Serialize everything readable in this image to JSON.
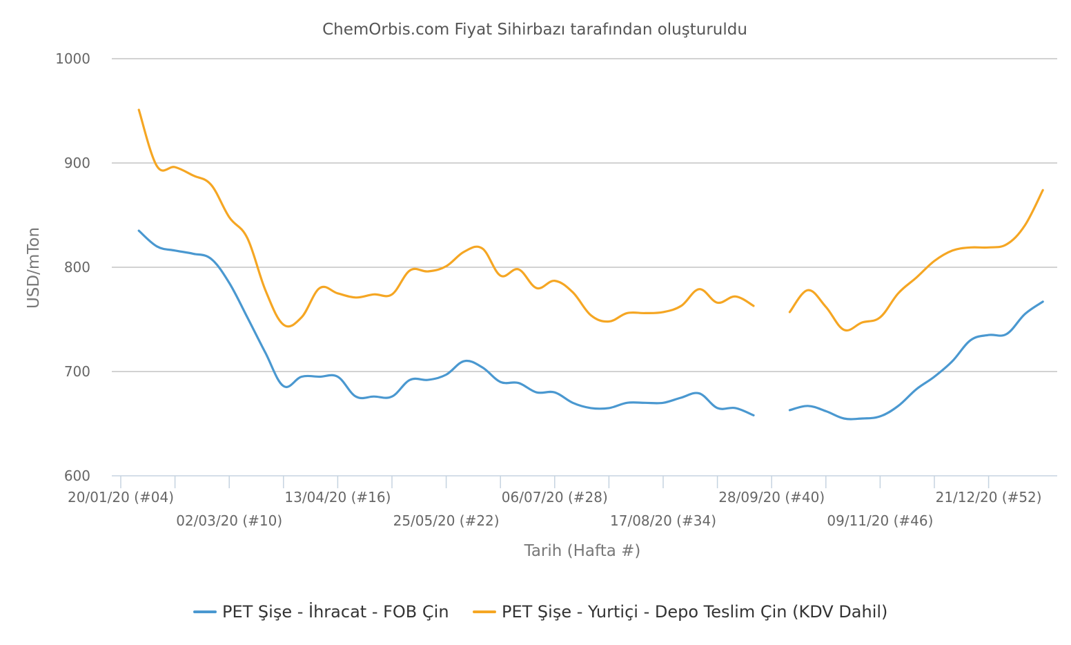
{
  "chart_data": {
    "type": "line",
    "title": "ChemOrbis.com Fiyat Sihirbazı tarafından oluşturuldu",
    "xlabel": "Tarih (Hafta #)",
    "ylabel": "USD/mTon",
    "ylim": [
      600,
      1000
    ],
    "yticks": [
      600,
      700,
      800,
      900,
      1000
    ],
    "grid": true,
    "legend_position": "bottom",
    "x_start_week": 4,
    "x_end_week": 53,
    "x_tick_labels": [
      {
        "week": 4,
        "label": "20/01/20 (#04)",
        "row": 0
      },
      {
        "week": 10,
        "label": "02/03/20 (#10)",
        "row": 1
      },
      {
        "week": 16,
        "label": "13/04/20 (#16)",
        "row": 0
      },
      {
        "week": 22,
        "label": "25/05/20 (#22)",
        "row": 1
      },
      {
        "week": 28,
        "label": "06/07/20 (#28)",
        "row": 0
      },
      {
        "week": 34,
        "label": "17/08/20 (#34)",
        "row": 1
      },
      {
        "week": 40,
        "label": "28/09/20 (#40)",
        "row": 0
      },
      {
        "week": 46,
        "label": "09/11/20 (#46)",
        "row": 1
      },
      {
        "week": 52,
        "label": "21/12/20 (#52)",
        "row": 0
      }
    ],
    "series": [
      {
        "name": "PET Şişe - İhracat - FOB Çin",
        "color": "#4a98d0",
        "points": [
          [
            5,
            835
          ],
          [
            6,
            820
          ],
          [
            7,
            816
          ],
          [
            8,
            813
          ],
          [
            9,
            808
          ],
          [
            10,
            785
          ],
          [
            11,
            752
          ],
          [
            12,
            718
          ],
          [
            13,
            686
          ],
          [
            14,
            695
          ],
          [
            15,
            695
          ],
          [
            16,
            695
          ],
          [
            17,
            676
          ],
          [
            18,
            676
          ],
          [
            19,
            676
          ],
          [
            20,
            692
          ],
          [
            21,
            692
          ],
          [
            22,
            697
          ],
          [
            23,
            710
          ],
          [
            24,
            704
          ],
          [
            25,
            690
          ],
          [
            26,
            689
          ],
          [
            27,
            680
          ],
          [
            28,
            680
          ],
          [
            29,
            670
          ],
          [
            30,
            665
          ],
          [
            31,
            665
          ],
          [
            32,
            670
          ],
          [
            33,
            670
          ],
          [
            34,
            670
          ],
          [
            35,
            675
          ],
          [
            36,
            679
          ],
          [
            37,
            665
          ],
          [
            38,
            665
          ],
          [
            39,
            658
          ],
          [
            41,
            663
          ],
          [
            42,
            667
          ],
          [
            43,
            662
          ],
          [
            44,
            655
          ],
          [
            45,
            655
          ],
          [
            46,
            657
          ],
          [
            47,
            667
          ],
          [
            48,
            683
          ],
          [
            49,
            695
          ],
          [
            50,
            710
          ],
          [
            51,
            730
          ],
          [
            52,
            735
          ],
          [
            53,
            736
          ],
          [
            54,
            755
          ],
          [
            55,
            767
          ]
        ],
        "breaks_after_week": [
          39
        ]
      },
      {
        "name": "PET Şişe - Yurtiçi - Depo Teslim Çin  (KDV Dahil)",
        "color": "#f5a623",
        "points": [
          [
            5,
            951
          ],
          [
            6,
            897
          ],
          [
            7,
            896
          ],
          [
            8,
            888
          ],
          [
            9,
            879
          ],
          [
            10,
            848
          ],
          [
            11,
            828
          ],
          [
            12,
            778
          ],
          [
            13,
            745
          ],
          [
            14,
            752
          ],
          [
            15,
            780
          ],
          [
            16,
            775
          ],
          [
            17,
            771
          ],
          [
            18,
            774
          ],
          [
            19,
            774
          ],
          [
            20,
            797
          ],
          [
            21,
            796
          ],
          [
            22,
            801
          ],
          [
            23,
            815
          ],
          [
            24,
            818
          ],
          [
            25,
            792
          ],
          [
            26,
            798
          ],
          [
            27,
            780
          ],
          [
            28,
            787
          ],
          [
            29,
            776
          ],
          [
            30,
            754
          ],
          [
            31,
            748
          ],
          [
            32,
            756
          ],
          [
            33,
            756
          ],
          [
            34,
            757
          ],
          [
            35,
            763
          ],
          [
            36,
            779
          ],
          [
            37,
            766
          ],
          [
            38,
            772
          ],
          [
            39,
            763
          ],
          [
            41,
            757
          ],
          [
            42,
            778
          ],
          [
            43,
            762
          ],
          [
            44,
            740
          ],
          [
            45,
            747
          ],
          [
            46,
            752
          ],
          [
            47,
            775
          ],
          [
            48,
            790
          ],
          [
            49,
            806
          ],
          [
            50,
            816
          ],
          [
            51,
            819
          ],
          [
            52,
            819
          ],
          [
            53,
            822
          ],
          [
            54,
            840
          ],
          [
            55,
            874
          ]
        ],
        "breaks_after_week": [
          39
        ]
      }
    ]
  }
}
